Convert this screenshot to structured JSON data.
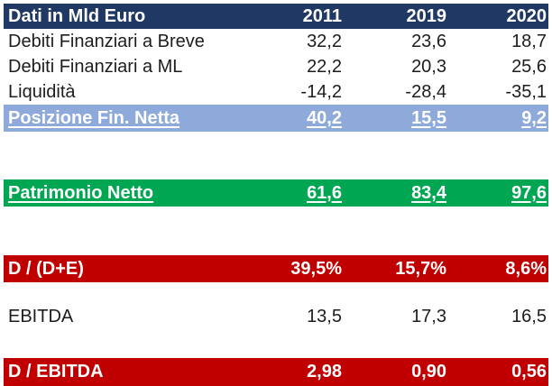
{
  "table": {
    "title_label": "Dati in Mld Euro",
    "columns": [
      "2011",
      "2019",
      "2020"
    ],
    "rows": [
      {
        "label": "Debiti Finanziari a Breve",
        "values": [
          "32,2",
          "23,6",
          "18,7"
        ],
        "style": "plain"
      },
      {
        "label": "Debiti Finanziari a ML",
        "values": [
          "22,2",
          "20,3",
          "25,6"
        ],
        "style": "plain"
      },
      {
        "label": "Liquidità",
        "values": [
          "-14,2",
          "-28,4",
          "-35,1"
        ],
        "style": "plain"
      },
      {
        "label": "Posizione Fin. Netta",
        "values": [
          "40,2",
          "15,5",
          "9,2"
        ],
        "style": "highlight-blue",
        "underlined": true
      },
      {
        "label": "Patrimonio Netto",
        "values": [
          "61,6",
          "83,4",
          "97,6"
        ],
        "style": "highlight-green",
        "underlined": true
      },
      {
        "label": "D / (D+E)",
        "values": [
          "39,5%",
          "15,7%",
          "8,6%"
        ],
        "style": "highlight-red"
      },
      {
        "label": "EBITDA",
        "values": [
          "13,5",
          "17,3",
          "16,5"
        ],
        "style": "plain"
      },
      {
        "label": "D / EBITDA",
        "values": [
          "2,98",
          "0,90",
          "0,56"
        ],
        "style": "highlight-red"
      }
    ]
  },
  "colors": {
    "header_navy": "#1F3864",
    "band_blue": "#8EAADB",
    "band_green": "#00A651",
    "band_red": "#C00000",
    "text_dark": "#1d1d1d",
    "text_light": "#ffffff"
  }
}
